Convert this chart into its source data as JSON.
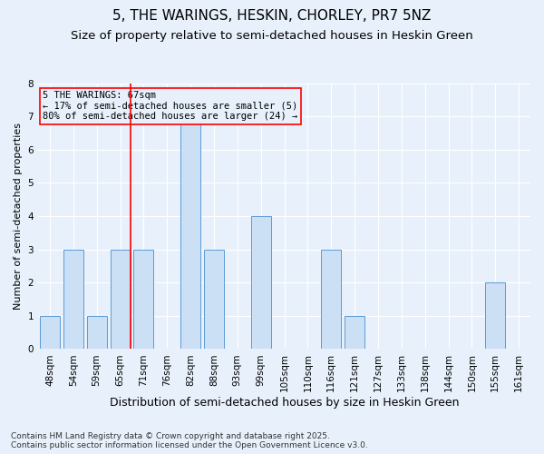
{
  "title": "5, THE WARINGS, HESKIN, CHORLEY, PR7 5NZ",
  "subtitle": "Size of property relative to semi-detached houses in Heskin Green",
  "xlabel": "Distribution of semi-detached houses by size in Heskin Green",
  "ylabel": "Number of semi-detached properties",
  "categories": [
    "48sqm",
    "54sqm",
    "59sqm",
    "65sqm",
    "71sqm",
    "76sqm",
    "82sqm",
    "88sqm",
    "93sqm",
    "99sqm",
    "105sqm",
    "110sqm",
    "116sqm",
    "121sqm",
    "127sqm",
    "133sqm",
    "138sqm",
    "144sqm",
    "150sqm",
    "155sqm",
    "161sqm"
  ],
  "values": [
    1,
    3,
    1,
    3,
    3,
    0,
    7,
    3,
    0,
    4,
    0,
    0,
    3,
    1,
    0,
    0,
    0,
    0,
    0,
    2,
    0
  ],
  "bar_color": "#cce0f5",
  "bar_edge_color": "#5b9bd5",
  "subject_line_bin": 3,
  "subject_label": "5 THE WARINGS: 67sqm",
  "pct_smaller": 17,
  "pct_smaller_count": 5,
  "pct_larger": 80,
  "pct_larger_count": 24,
  "ylim": [
    0,
    8
  ],
  "yticks": [
    0,
    1,
    2,
    3,
    4,
    5,
    6,
    7,
    8
  ],
  "footnote": "Contains HM Land Registry data © Crown copyright and database right 2025.\nContains public sector information licensed under the Open Government Licence v3.0.",
  "title_fontsize": 11,
  "subtitle_fontsize": 9.5,
  "xlabel_fontsize": 9,
  "ylabel_fontsize": 8,
  "tick_fontsize": 7.5,
  "annotation_fontsize": 7.5,
  "footnote_fontsize": 6.5,
  "background_color": "#e8f1fb",
  "grid_color": "#ffffff"
}
